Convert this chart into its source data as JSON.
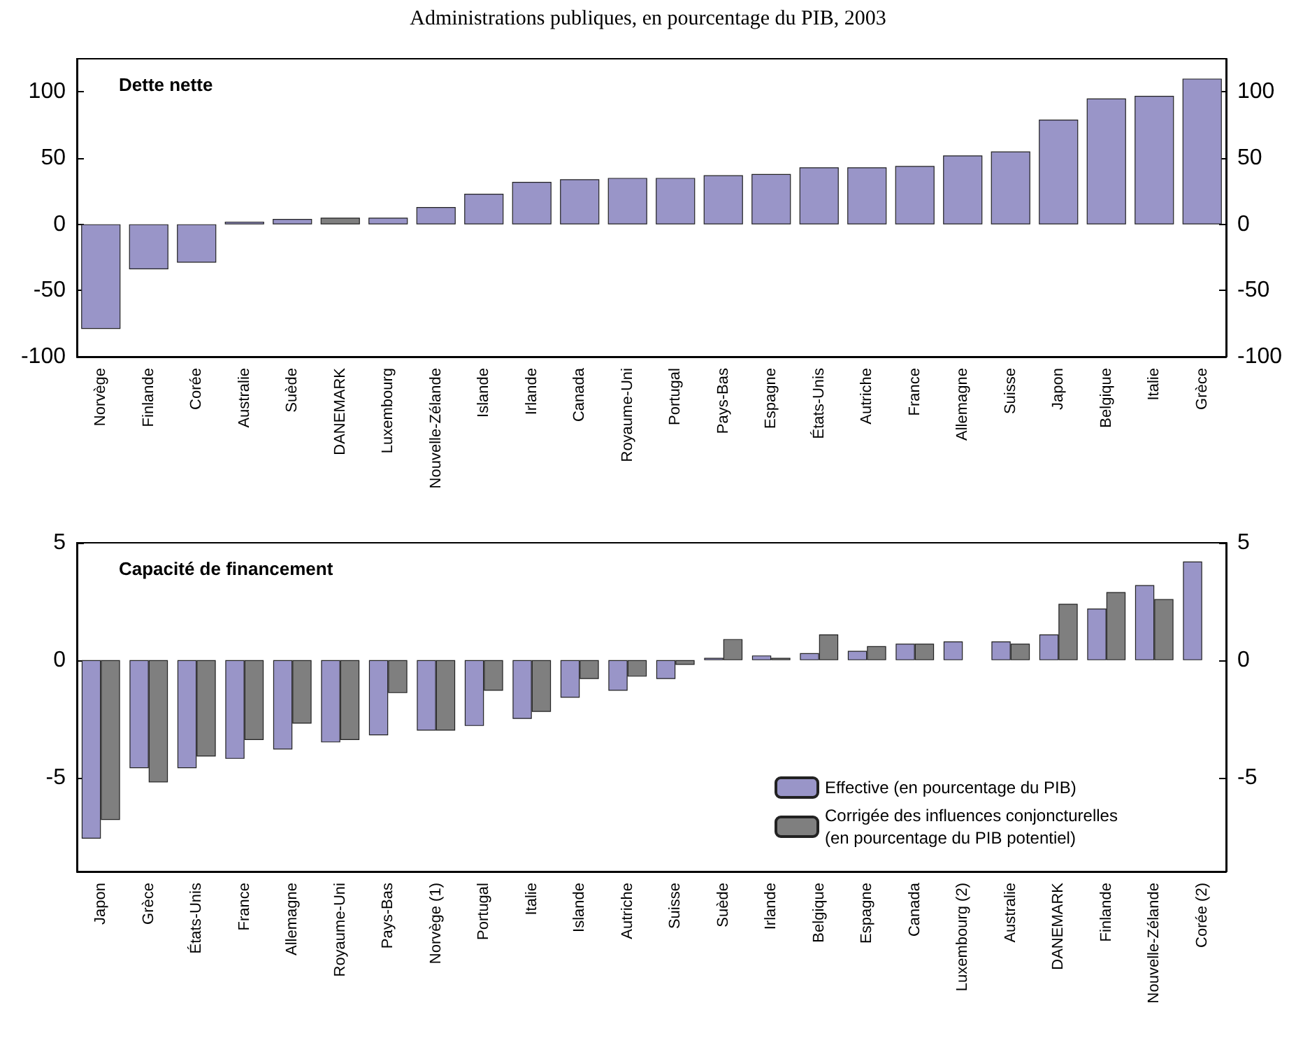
{
  "chart_data": [
    {
      "type": "bar",
      "title": "Administrations publiques, en pourcentage du PIB, 2003",
      "annotations": [
        "Dette nette"
      ],
      "categories": [
        "Norvège",
        "Finlande",
        "Corée",
        "Australie",
        "Suède",
        "DANEMARK",
        "Luxembourg",
        "Nouvelle-Zélande",
        "Islande",
        "Irlande",
        "Canada",
        "Royaume-Uni",
        "Portugal",
        "Pays-Bas",
        "Espagne",
        "États-Unis",
        "Autriche",
        "France",
        "Allemagne",
        "Suisse",
        "Japon",
        "Belgique",
        "Italie",
        "Grèce"
      ],
      "values": [
        -79,
        -34,
        -29,
        2,
        4,
        5,
        5,
        13,
        23,
        32,
        34,
        35,
        35,
        37,
        38,
        43,
        43,
        44,
        52,
        55,
        79,
        95,
        97,
        110
      ],
      "colors": [
        "#9995c8",
        "#9995c8",
        "#9995c8",
        "#9995c8",
        "#9995c8",
        "#7f7f7f",
        "#9995c8",
        "#9995c8",
        "#9995c8",
        "#9995c8",
        "#9995c8",
        "#9995c8",
        "#9995c8",
        "#9995c8",
        "#9995c8",
        "#9995c8",
        "#9995c8",
        "#9995c8",
        "#9995c8",
        "#9995c8",
        "#9995c8",
        "#9995c8",
        "#9995c8",
        "#9995c8"
      ],
      "ylim": [
        -100,
        125
      ],
      "yticks": [
        -100,
        -50,
        0,
        50,
        100
      ],
      "y2lim": [
        -100,
        125
      ],
      "y2ticks": [
        -100,
        -50,
        0,
        50,
        100
      ]
    },
    {
      "type": "bar",
      "annotations": [
        "Capacité de financement"
      ],
      "categories": [
        "Japon",
        "Grèce",
        "États-Unis",
        "France",
        "Allemagne",
        "Royaume-Uni",
        "Pays-Bas",
        "Norvège (1)",
        "Portugal",
        "Italie",
        "Islande",
        "Autriche",
        "Suisse",
        "Suède",
        "Irlande",
        "Belgique",
        "Espagne",
        "Canada",
        "Luxembourg (2)",
        "Australie",
        "DANEMARK",
        "Finlande",
        "Nouvelle-Zélande",
        "Corée (2)"
      ],
      "series": [
        {
          "name": "Effective (en pourcentage du PIB)",
          "color": "#9995c8",
          "values": [
            -7.6,
            -4.6,
            -4.6,
            -4.2,
            -3.8,
            -3.5,
            -3.2,
            -3.0,
            -2.8,
            -2.5,
            -1.6,
            -1.3,
            -0.8,
            0.1,
            0.2,
            0.3,
            0.4,
            0.7,
            0.8,
            0.8,
            1.1,
            2.2,
            3.2,
            4.2
          ]
        },
        {
          "name": "Corrigée des influences conjoncturelles (en pourcentage du PIB potentiel)",
          "color": "#7f7f7f",
          "values": [
            -6.8,
            -5.2,
            -4.1,
            -3.4,
            -2.7,
            -3.4,
            -1.4,
            -3.0,
            -1.3,
            -2.2,
            -0.8,
            -0.7,
            -0.2,
            0.9,
            0.1,
            1.1,
            0.6,
            0.7,
            null,
            0.7,
            2.4,
            2.9,
            2.6,
            null
          ]
        }
      ],
      "legend": "bottom right",
      "ylim": [
        -9,
        5
      ],
      "yticks": [
        -5,
        0,
        5
      ],
      "y2lim": [
        -9,
        5
      ],
      "y2ticks": [
        -5,
        0,
        5
      ]
    }
  ]
}
